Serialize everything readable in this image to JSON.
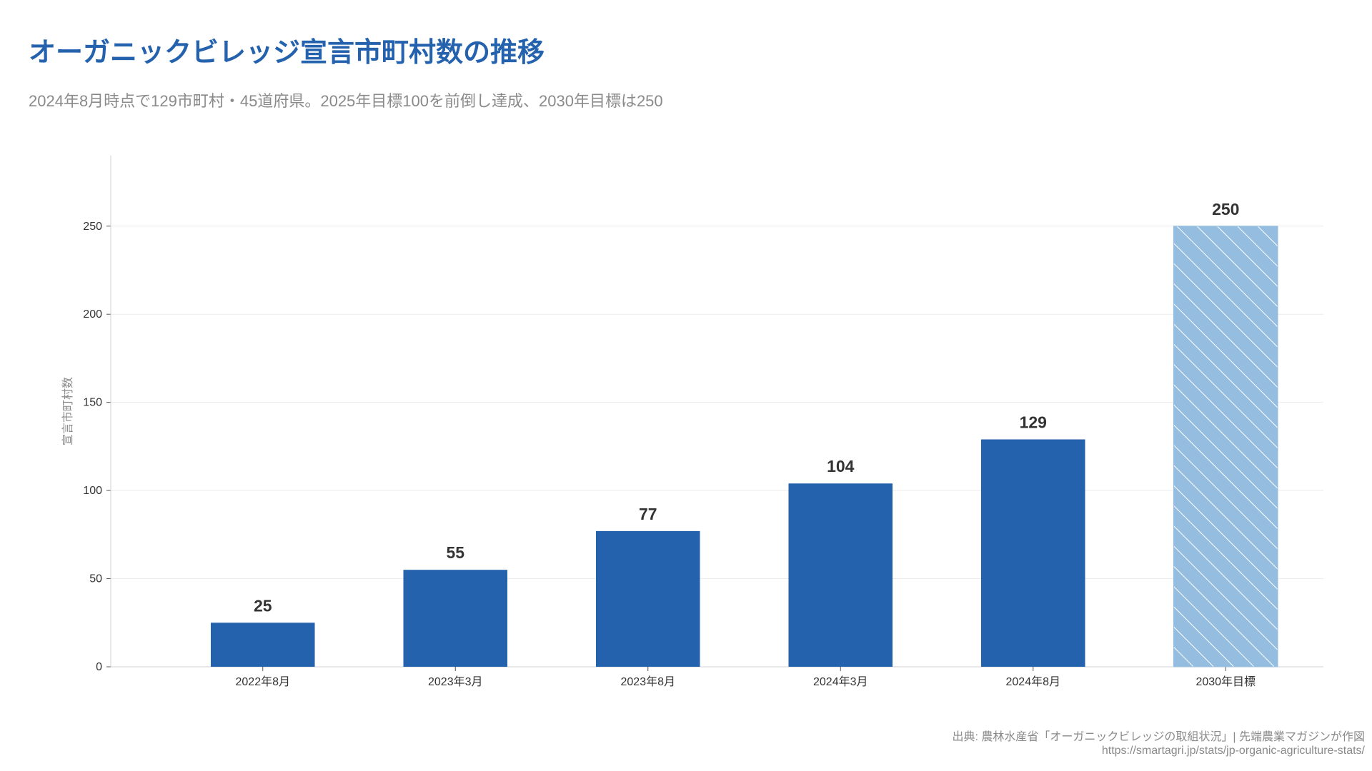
{
  "header": {
    "title": "オーガニックビレッジ宣言市町村数の推移",
    "subtitle": "2024年8月時点で129市町村・45道府県。2025年目標100を前倒し達成、2030年目標は250"
  },
  "footer": {
    "source": "出典: 農林水産省「オーガニックビレッジの取組状況」| 先端農業マガジンが作図",
    "url": "https://smartagri.jp/stats/jp-organic-agriculture-stats/"
  },
  "chart_data": {
    "type": "bar",
    "title": "オーガニックビレッジ宣言市町村数の推移",
    "subtitle": "2024年8月時点で129市町村・45道府県。2025年目標100を前倒し達成、2030年目標は250",
    "xlabel": "",
    "ylabel": "宣言市町村数",
    "categories": [
      "2022年8月",
      "2023年3月",
      "2023年8月",
      "2024年3月",
      "2024年8月",
      "2030年目標"
    ],
    "values": [
      25,
      55,
      77,
      104,
      129,
      250
    ],
    "value_labels": [
      "25",
      "55",
      "77",
      "104",
      "129",
      "250"
    ],
    "target_flags": [
      false,
      false,
      false,
      false,
      false,
      true
    ],
    "ylim": [
      0,
      290
    ],
    "yticks": [
      0,
      50,
      100,
      150,
      200,
      250
    ],
    "ytick_labels": [
      "0",
      "50",
      "100",
      "150",
      "200",
      "250"
    ],
    "grid": true,
    "colors": {
      "actual": "#2462ae",
      "target": "#94bde0",
      "target_hatch": "#ffffff",
      "grid": "#ececec",
      "axis": "#d0d0d0"
    }
  }
}
